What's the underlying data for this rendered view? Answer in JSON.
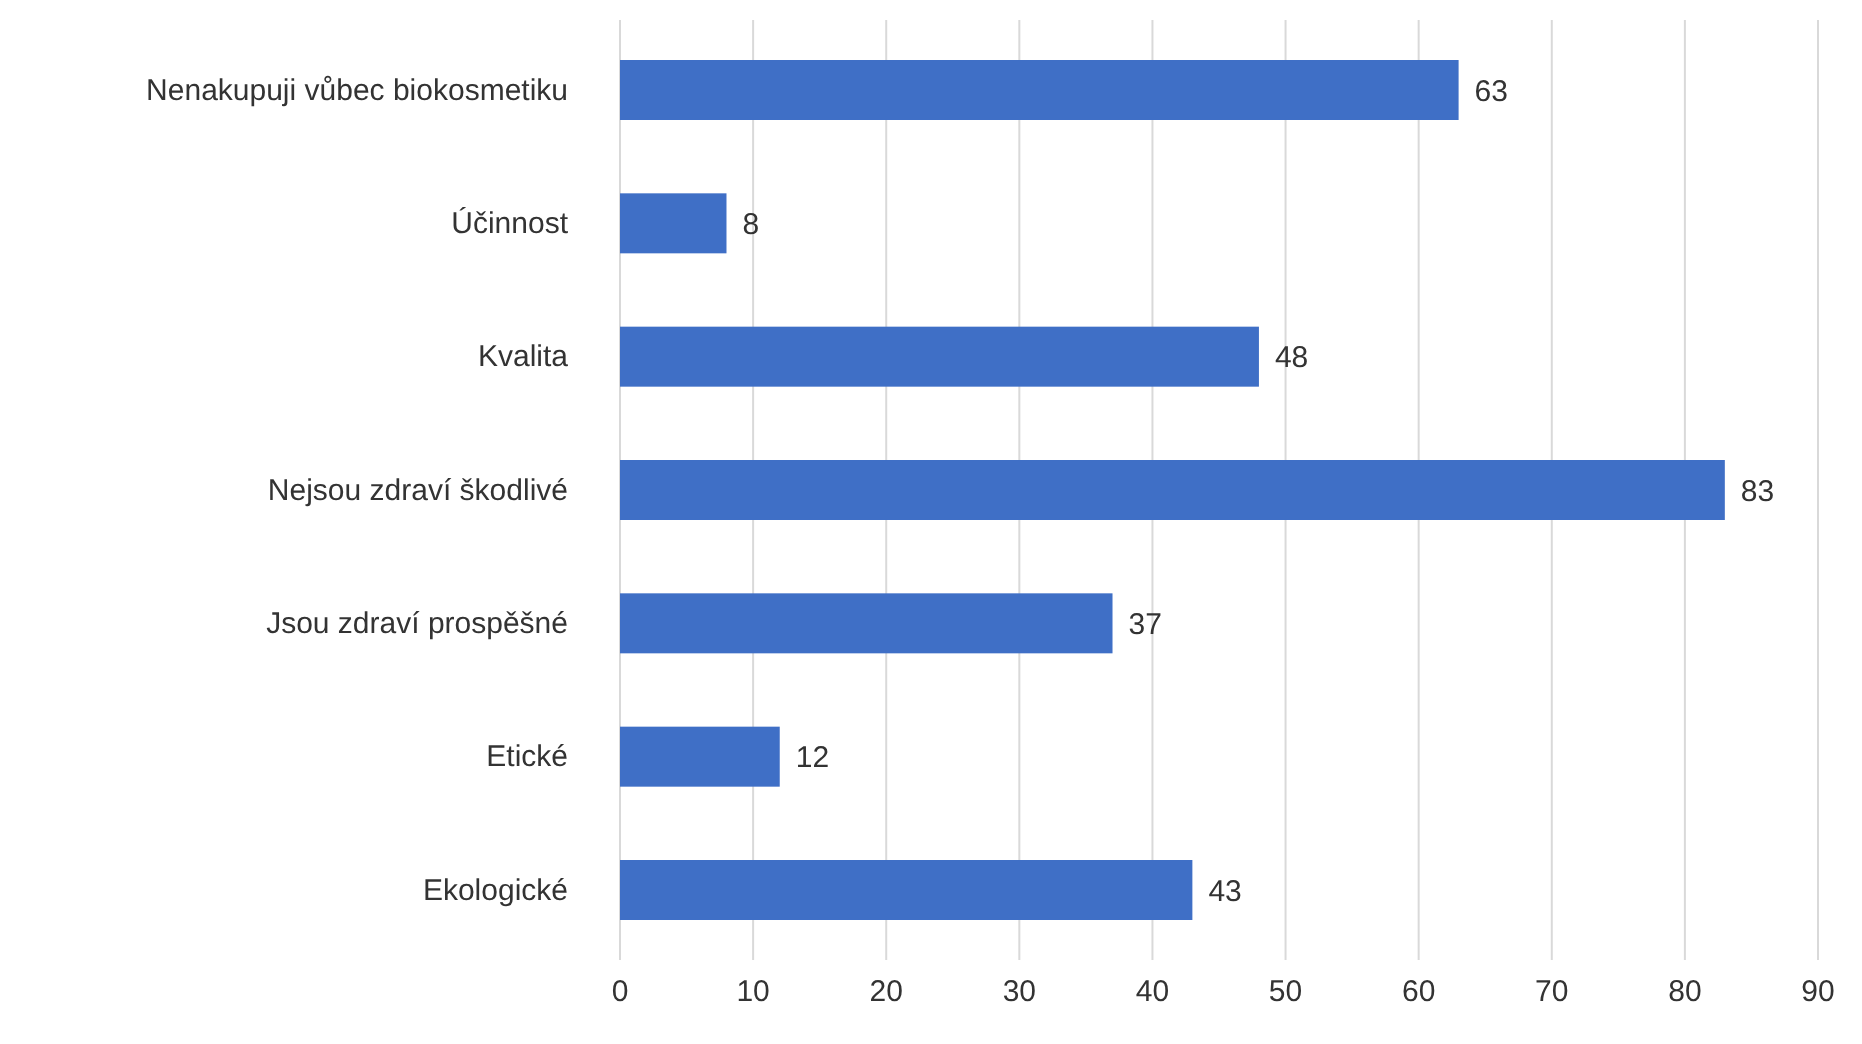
{
  "chart_data": {
    "type": "bar",
    "orientation": "horizontal",
    "categories": [
      "Nenakupuji vůbec biokosmetiku",
      "Účinnost",
      "Kvalita",
      "Nejsou zdraví škodlivé",
      "Jsou zdraví prospěšné",
      "Etické",
      "Ekologické"
    ],
    "values": [
      63,
      8,
      48,
      83,
      37,
      12,
      43
    ],
    "color": "#3f6fc6",
    "xlim": [
      0,
      90
    ],
    "xticks": [
      0,
      10,
      20,
      30,
      40,
      50,
      60,
      70,
      80,
      90
    ],
    "grid": "x",
    "data_labels": true
  }
}
